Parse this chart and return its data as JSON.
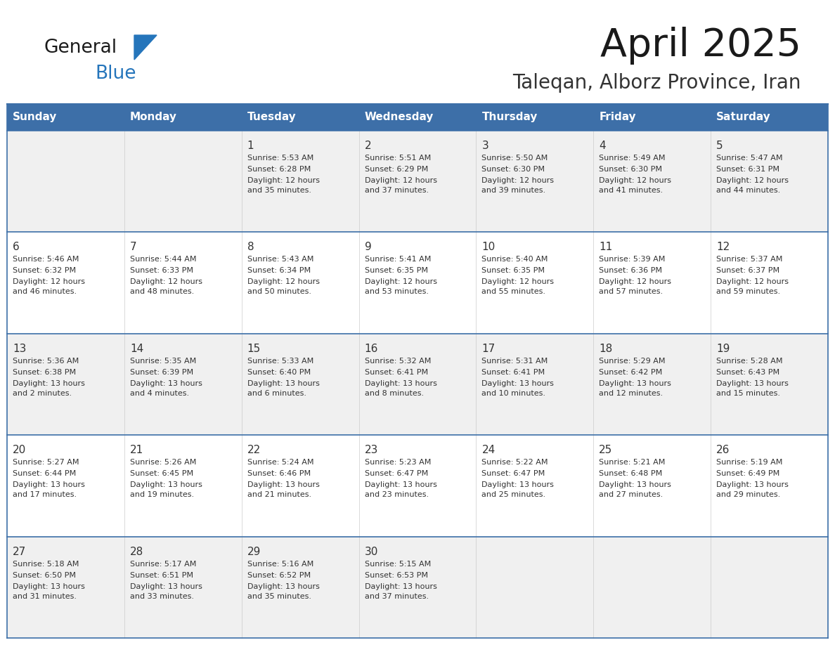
{
  "title": "April 2025",
  "subtitle": "Taleqan, Alborz Province, Iran",
  "days_of_week": [
    "Sunday",
    "Monday",
    "Tuesday",
    "Wednesday",
    "Thursday",
    "Friday",
    "Saturday"
  ],
  "header_bg": "#3D6FA8",
  "header_text_color": "#FFFFFF",
  "cell_bg_even": "#F0F0F0",
  "cell_bg_odd": "#FFFFFF",
  "cell_text_color": "#333333",
  "line_color": "#3D6FA8",
  "title_color": "#1a1a1a",
  "subtitle_color": "#333333",
  "general_color": "#1a1a1a",
  "blue_color": "#2575BB",
  "calendar_data": [
    [
      {
        "day": null,
        "sunrise": null,
        "sunset": null,
        "daylight": null
      },
      {
        "day": null,
        "sunrise": null,
        "sunset": null,
        "daylight": null
      },
      {
        "day": 1,
        "sunrise": "5:53 AM",
        "sunset": "6:28 PM",
        "daylight": "12 hours and 35 minutes."
      },
      {
        "day": 2,
        "sunrise": "5:51 AM",
        "sunset": "6:29 PM",
        "daylight": "12 hours and 37 minutes."
      },
      {
        "day": 3,
        "sunrise": "5:50 AM",
        "sunset": "6:30 PM",
        "daylight": "12 hours and 39 minutes."
      },
      {
        "day": 4,
        "sunrise": "5:49 AM",
        "sunset": "6:30 PM",
        "daylight": "12 hours and 41 minutes."
      },
      {
        "day": 5,
        "sunrise": "5:47 AM",
        "sunset": "6:31 PM",
        "daylight": "12 hours and 44 minutes."
      }
    ],
    [
      {
        "day": 6,
        "sunrise": "5:46 AM",
        "sunset": "6:32 PM",
        "daylight": "12 hours and 46 minutes."
      },
      {
        "day": 7,
        "sunrise": "5:44 AM",
        "sunset": "6:33 PM",
        "daylight": "12 hours and 48 minutes."
      },
      {
        "day": 8,
        "sunrise": "5:43 AM",
        "sunset": "6:34 PM",
        "daylight": "12 hours and 50 minutes."
      },
      {
        "day": 9,
        "sunrise": "5:41 AM",
        "sunset": "6:35 PM",
        "daylight": "12 hours and 53 minutes."
      },
      {
        "day": 10,
        "sunrise": "5:40 AM",
        "sunset": "6:35 PM",
        "daylight": "12 hours and 55 minutes."
      },
      {
        "day": 11,
        "sunrise": "5:39 AM",
        "sunset": "6:36 PM",
        "daylight": "12 hours and 57 minutes."
      },
      {
        "day": 12,
        "sunrise": "5:37 AM",
        "sunset": "6:37 PM",
        "daylight": "12 hours and 59 minutes."
      }
    ],
    [
      {
        "day": 13,
        "sunrise": "5:36 AM",
        "sunset": "6:38 PM",
        "daylight": "13 hours and 2 minutes."
      },
      {
        "day": 14,
        "sunrise": "5:35 AM",
        "sunset": "6:39 PM",
        "daylight": "13 hours and 4 minutes."
      },
      {
        "day": 15,
        "sunrise": "5:33 AM",
        "sunset": "6:40 PM",
        "daylight": "13 hours and 6 minutes."
      },
      {
        "day": 16,
        "sunrise": "5:32 AM",
        "sunset": "6:41 PM",
        "daylight": "13 hours and 8 minutes."
      },
      {
        "day": 17,
        "sunrise": "5:31 AM",
        "sunset": "6:41 PM",
        "daylight": "13 hours and 10 minutes."
      },
      {
        "day": 18,
        "sunrise": "5:29 AM",
        "sunset": "6:42 PM",
        "daylight": "13 hours and 12 minutes."
      },
      {
        "day": 19,
        "sunrise": "5:28 AM",
        "sunset": "6:43 PM",
        "daylight": "13 hours and 15 minutes."
      }
    ],
    [
      {
        "day": 20,
        "sunrise": "5:27 AM",
        "sunset": "6:44 PM",
        "daylight": "13 hours and 17 minutes."
      },
      {
        "day": 21,
        "sunrise": "5:26 AM",
        "sunset": "6:45 PM",
        "daylight": "13 hours and 19 minutes."
      },
      {
        "day": 22,
        "sunrise": "5:24 AM",
        "sunset": "6:46 PM",
        "daylight": "13 hours and 21 minutes."
      },
      {
        "day": 23,
        "sunrise": "5:23 AM",
        "sunset": "6:47 PM",
        "daylight": "13 hours and 23 minutes."
      },
      {
        "day": 24,
        "sunrise": "5:22 AM",
        "sunset": "6:47 PM",
        "daylight": "13 hours and 25 minutes."
      },
      {
        "day": 25,
        "sunrise": "5:21 AM",
        "sunset": "6:48 PM",
        "daylight": "13 hours and 27 minutes."
      },
      {
        "day": 26,
        "sunrise": "5:19 AM",
        "sunset": "6:49 PM",
        "daylight": "13 hours and 29 minutes."
      }
    ],
    [
      {
        "day": 27,
        "sunrise": "5:18 AM",
        "sunset": "6:50 PM",
        "daylight": "13 hours and 31 minutes."
      },
      {
        "day": 28,
        "sunrise": "5:17 AM",
        "sunset": "6:51 PM",
        "daylight": "13 hours and 33 minutes."
      },
      {
        "day": 29,
        "sunrise": "5:16 AM",
        "sunset": "6:52 PM",
        "daylight": "13 hours and 35 minutes."
      },
      {
        "day": 30,
        "sunrise": "5:15 AM",
        "sunset": "6:53 PM",
        "daylight": "13 hours and 37 minutes."
      },
      {
        "day": null,
        "sunrise": null,
        "sunset": null,
        "daylight": null
      },
      {
        "day": null,
        "sunrise": null,
        "sunset": null,
        "daylight": null
      },
      {
        "day": null,
        "sunrise": null,
        "sunset": null,
        "daylight": null
      }
    ]
  ]
}
